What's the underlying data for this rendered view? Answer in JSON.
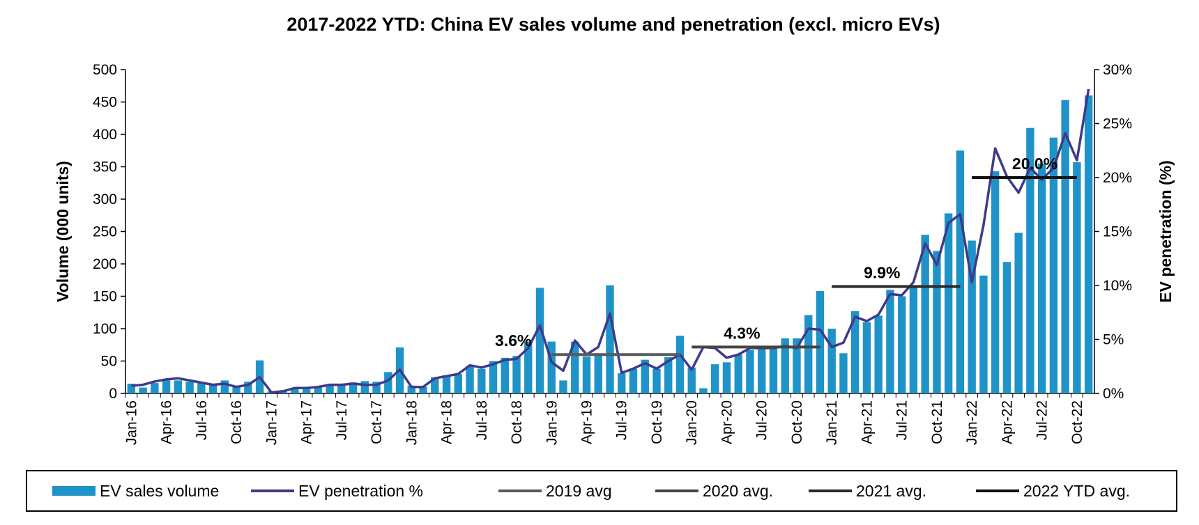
{
  "chart_data": {
    "type": "bar-line",
    "title": "2017-2022 YTD: China EV sales volume and penetration (excl. micro EVs)",
    "y_label": "Volume (000 units)",
    "y2_label": "EV penetration (%)",
    "categories": [
      "Jan-16",
      null,
      null,
      "Apr-16",
      null,
      null,
      "Jul-16",
      null,
      null,
      "Oct-16",
      null,
      null,
      "Jan-17",
      null,
      null,
      "Apr-17",
      null,
      null,
      "Jul-17",
      null,
      null,
      "Oct-17",
      null,
      null,
      "Jan-18",
      null,
      null,
      "Apr-18",
      null,
      null,
      "Jul-18",
      null,
      null,
      "Oct-18",
      null,
      null,
      "Jan-19",
      null,
      null,
      "Apr-19",
      null,
      null,
      "Jul-19",
      null,
      null,
      "Oct-19",
      null,
      null,
      "Jan-20",
      null,
      null,
      "Apr-20",
      null,
      null,
      "Jul-20",
      null,
      null,
      "Oct-20",
      null,
      null,
      "Jan-21",
      null,
      null,
      "Apr-21",
      null,
      null,
      "Jul-21",
      null,
      null,
      "Oct-21",
      null,
      null,
      "Jan-22",
      null,
      null,
      "Apr-22",
      null,
      null,
      "Jul-22",
      null,
      null,
      "Oct-22",
      null
    ],
    "ylim": [
      0,
      500
    ],
    "yticks": [
      0,
      50,
      100,
      150,
      200,
      250,
      300,
      350,
      400,
      450,
      500
    ],
    "y2lim": [
      0,
      30
    ],
    "y2ticks": [
      {
        "value": 0,
        "label": "0%"
      },
      {
        "value": 5,
        "label": "5%"
      },
      {
        "value": 10,
        "label": "10%"
      },
      {
        "value": 15,
        "label": "15%"
      },
      {
        "value": 20,
        "label": "20%"
      },
      {
        "value": 25,
        "label": "25%"
      },
      {
        "value": 30,
        "label": "30%"
      }
    ],
    "legend": "bottom",
    "series": [
      {
        "name": "EV sales volume",
        "type": "bar",
        "color": "#1f93c8",
        "values": [
          15,
          9,
          16,
          20,
          20,
          18,
          16,
          15,
          20,
          12,
          18,
          51,
          3,
          4,
          8,
          9,
          11,
          14,
          14,
          17,
          19,
          18,
          33,
          71,
          12,
          10,
          25,
          28,
          30,
          42,
          38,
          50,
          55,
          58,
          80,
          163,
          80,
          20,
          80,
          57,
          62,
          167,
          31,
          38,
          52,
          38,
          56,
          89,
          40,
          8,
          45,
          48,
          60,
          67,
          70,
          73,
          85,
          85,
          121,
          158,
          100,
          62,
          127,
          110,
          120,
          160,
          150,
          165,
          245,
          220,
          278,
          375,
          236,
          182,
          343,
          203,
          248,
          410,
          355,
          395,
          453,
          357,
          460
        ]
      },
      {
        "name": "EV penetration %",
        "type": "line",
        "axis": "y2",
        "color": "#3f3a8a",
        "values": [
          0.7,
          0.8,
          1.1,
          1.3,
          1.4,
          1.2,
          1.0,
          0.8,
          0.9,
          0.6,
          0.8,
          1.5,
          0.1,
          0.2,
          0.5,
          0.5,
          0.6,
          0.8,
          0.8,
          0.9,
          0.8,
          0.8,
          1.2,
          2.2,
          0.6,
          0.6,
          1.4,
          1.6,
          1.8,
          2.6,
          2.4,
          2.7,
          3.1,
          3.2,
          4.2,
          6.3,
          2.9,
          2.1,
          4.9,
          3.6,
          4.3,
          7.4,
          1.9,
          2.3,
          2.8,
          2.3,
          3.0,
          3.6,
          2.2,
          4.3,
          4.2,
          3.3,
          3.6,
          4.2,
          4.2,
          4.2,
          4.4,
          4.2,
          6.0,
          5.9,
          4.3,
          4.7,
          7.1,
          6.7,
          7.3,
          9.2,
          9.1,
          10.3,
          13.9,
          11.9,
          15.8,
          16.6,
          10.3,
          15.6,
          22.7,
          20.1,
          18.6,
          20.9,
          19.8,
          20.9,
          24.1,
          21.6,
          28.2
        ]
      },
      {
        "name": "2019 avg",
        "type": "avg",
        "axis": "y2",
        "color": "#5a5a5a",
        "value_label": "3.6%",
        "values": [
          null,
          null,
          null,
          null,
          null,
          null,
          null,
          null,
          null,
          null,
          null,
          null,
          null,
          null,
          null,
          null,
          null,
          null,
          null,
          null,
          null,
          null,
          null,
          null,
          null,
          null,
          null,
          null,
          null,
          null,
          null,
          null,
          null,
          null,
          null,
          null,
          3.6,
          3.6,
          3.6,
          3.6,
          3.6,
          3.6,
          3.6,
          3.6,
          3.6,
          3.6,
          3.6,
          3.6,
          null,
          null,
          null,
          null,
          null,
          null,
          null,
          null,
          null,
          null,
          null,
          null,
          null,
          null,
          null,
          null,
          null,
          null,
          null,
          null,
          null,
          null,
          null,
          null,
          null,
          null,
          null,
          null,
          null,
          null,
          null,
          null,
          null,
          null,
          null
        ]
      },
      {
        "name": "2020 avg.",
        "type": "avg",
        "axis": "y2",
        "color": "#444444",
        "value_label": "4.3%",
        "values": [
          null,
          null,
          null,
          null,
          null,
          null,
          null,
          null,
          null,
          null,
          null,
          null,
          null,
          null,
          null,
          null,
          null,
          null,
          null,
          null,
          null,
          null,
          null,
          null,
          null,
          null,
          null,
          null,
          null,
          null,
          null,
          null,
          null,
          null,
          null,
          null,
          null,
          null,
          null,
          null,
          null,
          null,
          null,
          null,
          null,
          null,
          null,
          null,
          4.3,
          4.3,
          4.3,
          4.3,
          4.3,
          4.3,
          4.3,
          4.3,
          4.3,
          4.3,
          4.3,
          4.3,
          null,
          null,
          null,
          null,
          null,
          null,
          null,
          null,
          null,
          null,
          null,
          null,
          null,
          null,
          null,
          null,
          null,
          null,
          null,
          null,
          null,
          null,
          null
        ]
      },
      {
        "name": "2021 avg.",
        "type": "avg",
        "axis": "y2",
        "color": "#2a2a2a",
        "value_label": "9.9%",
        "values": [
          null,
          null,
          null,
          null,
          null,
          null,
          null,
          null,
          null,
          null,
          null,
          null,
          null,
          null,
          null,
          null,
          null,
          null,
          null,
          null,
          null,
          null,
          null,
          null,
          null,
          null,
          null,
          null,
          null,
          null,
          null,
          null,
          null,
          null,
          null,
          null,
          null,
          null,
          null,
          null,
          null,
          null,
          null,
          null,
          null,
          null,
          null,
          null,
          null,
          null,
          null,
          null,
          null,
          null,
          null,
          null,
          null,
          null,
          null,
          null,
          9.9,
          9.9,
          9.9,
          9.9,
          9.9,
          9.9,
          9.9,
          9.9,
          9.9,
          9.9,
          9.9,
          9.9,
          null,
          null,
          null,
          null,
          null,
          null,
          null,
          null,
          null,
          null,
          null
        ]
      },
      {
        "name": "2022 YTD avg.",
        "type": "avg",
        "axis": "y2",
        "color": "#111111",
        "value_label": "20.0%",
        "values": [
          null,
          null,
          null,
          null,
          null,
          null,
          null,
          null,
          null,
          null,
          null,
          null,
          null,
          null,
          null,
          null,
          null,
          null,
          null,
          null,
          null,
          null,
          null,
          null,
          null,
          null,
          null,
          null,
          null,
          null,
          null,
          null,
          null,
          null,
          null,
          null,
          null,
          null,
          null,
          null,
          null,
          null,
          null,
          null,
          null,
          null,
          null,
          null,
          null,
          null,
          null,
          null,
          null,
          null,
          null,
          null,
          null,
          null,
          null,
          null,
          null,
          null,
          null,
          null,
          null,
          null,
          null,
          null,
          null,
          null,
          null,
          null,
          20.0,
          20.0,
          20.0,
          20.0,
          20.0,
          20.0,
          20.0,
          20.0,
          20.0,
          20.0,
          null
        ]
      }
    ]
  }
}
